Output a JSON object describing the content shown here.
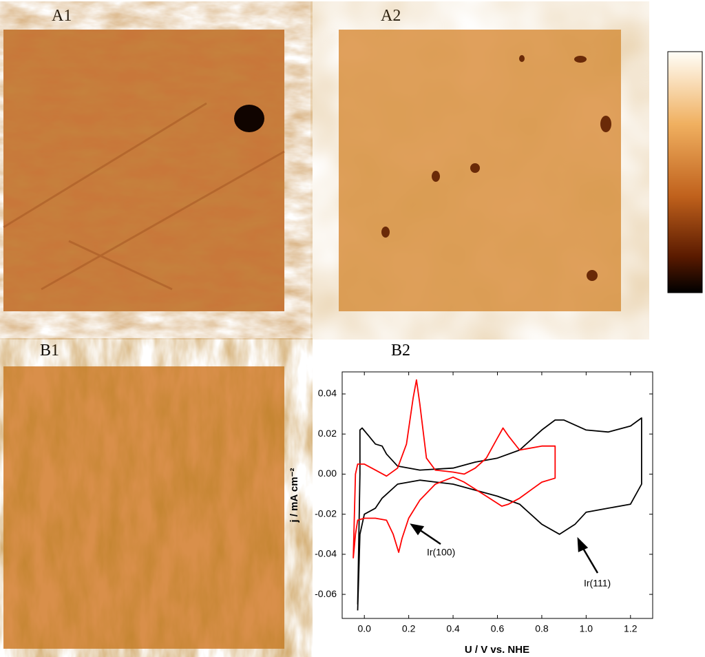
{
  "panel_labels": [
    "A1",
    "A2",
    "B1",
    "B2"
  ],
  "chart_data": {
    "type": "line",
    "xlabel": "U / V vs. NHE",
    "ylabel": "j / mA cm⁻²",
    "xlim": [
      -0.1,
      1.3
    ],
    "ylim": [
      -0.072,
      0.051
    ],
    "xticks": [
      {
        "value": 0,
        "label": "0.0"
      },
      0.2,
      0.4,
      0.6,
      0.8,
      {
        "value": 1,
        "label": "1.0"
      },
      1.2
    ],
    "yticks": [
      0.04,
      0.02,
      {
        "value": 0,
        "label": "0.00"
      },
      -0.02,
      -0.04,
      -0.06
    ],
    "annotations": [
      "Ir(100)",
      "Ir(111)"
    ],
    "series": [
      {
        "color": "#000000",
        "x": [
          -0.03,
          -0.02,
          -0.02,
          -0.01,
          0.02,
          0.05,
          0.08,
          0.1,
          0.15,
          0.25,
          0.4,
          0.5,
          0.6,
          0.7,
          0.8,
          0.86,
          0.9,
          1.0,
          1.1,
          1.2,
          1.25,
          1.25,
          1.2,
          1.1,
          1.0,
          0.95,
          0.88,
          0.8,
          0.7,
          0.6,
          0.5,
          0.4,
          0.25,
          0.15,
          0.08,
          0.05,
          0.0,
          -0.02,
          -0.03
        ],
        "values": [
          -0.065,
          0.0,
          0.022,
          0.023,
          0.019,
          0.015,
          0.014,
          0.01,
          0.004,
          0.002,
          0.003,
          0.006,
          0.008,
          0.012,
          0.022,
          0.027,
          0.027,
          0.022,
          0.021,
          0.024,
          0.028,
          -0.005,
          -0.015,
          -0.017,
          -0.019,
          -0.025,
          -0.03,
          -0.025,
          -0.015,
          -0.011,
          -0.008,
          -0.005,
          -0.003,
          -0.005,
          -0.012,
          -0.017,
          -0.02,
          -0.03,
          -0.068
        ]
      },
      {
        "color": "#ff0000",
        "x": [
          -0.05,
          -0.04,
          -0.03,
          0.0,
          0.05,
          0.1,
          0.15,
          0.19,
          0.22,
          0.235,
          0.25,
          0.28,
          0.32,
          0.4,
          0.45,
          0.5,
          0.55,
          0.6,
          0.625,
          0.65,
          0.7,
          0.8,
          0.86,
          0.86,
          0.8,
          0.75,
          0.7,
          0.65,
          0.62,
          0.55,
          0.45,
          0.4,
          0.32,
          0.25,
          0.2,
          0.17,
          0.155,
          0.13,
          0.1,
          0.05,
          0.0,
          -0.03,
          -0.04,
          -0.05
        ],
        "values": [
          -0.042,
          0.0,
          0.005,
          0.005,
          0.002,
          -0.001,
          0.003,
          0.015,
          0.038,
          0.047,
          0.035,
          0.008,
          0.002,
          0.001,
          0.0,
          0.003,
          0.008,
          0.018,
          0.023,
          0.019,
          0.012,
          0.014,
          0.014,
          -0.002,
          -0.004,
          -0.008,
          -0.012,
          -0.015,
          -0.016,
          -0.011,
          -0.004,
          -0.0015,
          -0.005,
          -0.013,
          -0.022,
          -0.032,
          -0.039,
          -0.03,
          -0.023,
          -0.022,
          -0.022,
          -0.023,
          -0.03,
          -0.042
        ]
      }
    ]
  }
}
